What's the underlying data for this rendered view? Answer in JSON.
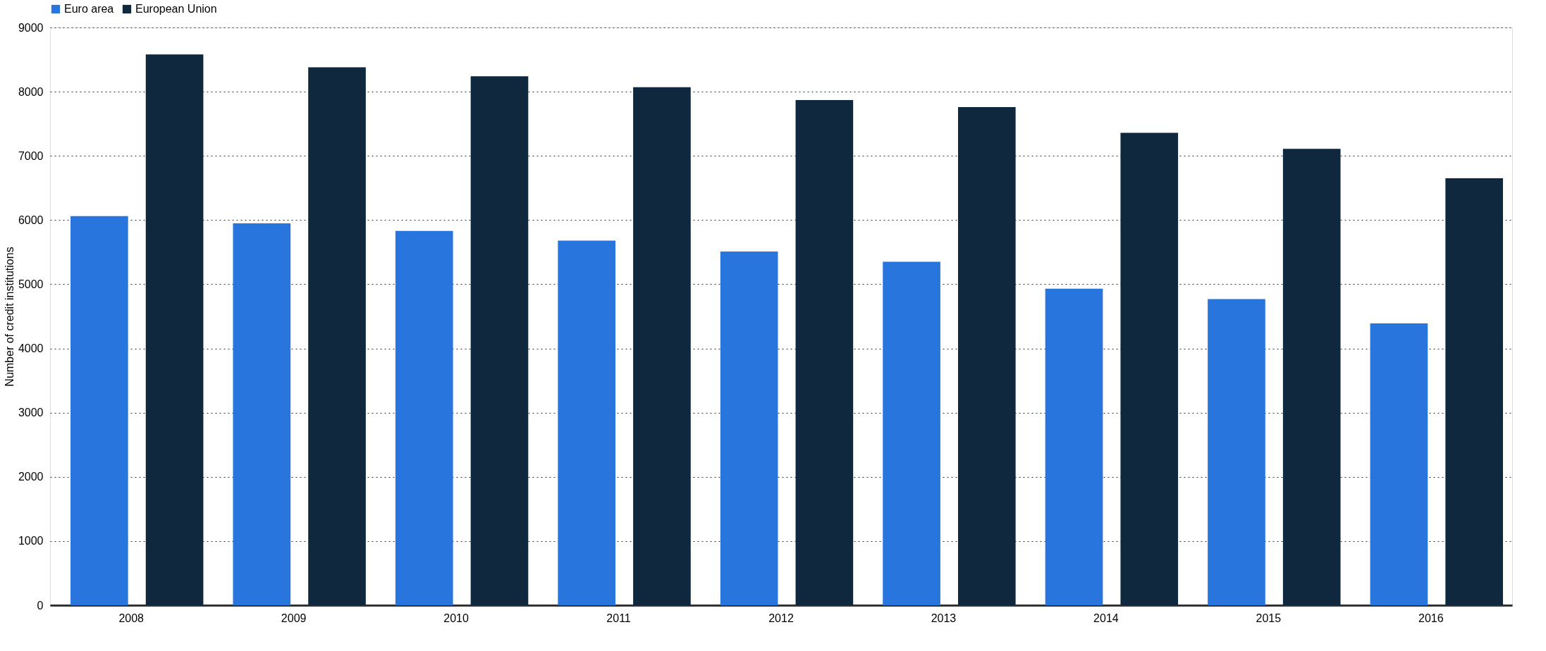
{
  "chart_data": {
    "type": "bar",
    "ylabel": "Number of credit institutions",
    "categories": [
      "2008",
      "2009",
      "2010",
      "2011",
      "2012",
      "2013",
      "2014",
      "2015",
      "2016"
    ],
    "series": [
      {
        "name": "Euro area",
        "color": "#2876dd",
        "values": [
          6060,
          5950,
          5830,
          5680,
          5510,
          5350,
          4930,
          4770,
          4390
        ]
      },
      {
        "name": "European Union",
        "color": "#10283e",
        "values": [
          8580,
          8380,
          8240,
          8070,
          7870,
          7760,
          7360,
          7110,
          6650
        ]
      }
    ],
    "ylim": [
      0,
      9000
    ],
    "yticks": [
      0,
      1000,
      2000,
      3000,
      4000,
      5000,
      6000,
      7000,
      8000,
      9000
    ],
    "grid": "y",
    "legend": "top"
  }
}
